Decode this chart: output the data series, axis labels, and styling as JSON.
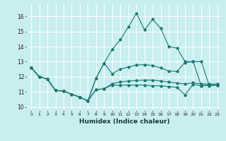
{
  "xlabel": "Humidex (Indice chaleur)",
  "xlim": [
    -0.5,
    23.5
  ],
  "ylim": [
    9.8,
    16.8
  ],
  "yticks": [
    10,
    11,
    12,
    13,
    14,
    15,
    16
  ],
  "xticks": [
    0,
    1,
    2,
    3,
    4,
    5,
    6,
    7,
    8,
    9,
    10,
    11,
    12,
    13,
    14,
    15,
    16,
    17,
    18,
    19,
    20,
    21,
    22,
    23
  ],
  "bg_color": "#c8eef0",
  "grid_color": "#ffffff",
  "line_color": "#1a7a6e",
  "lines": [
    {
      "x": [
        0,
        1,
        2,
        3,
        4,
        5,
        6,
        7,
        8,
        9,
        10,
        11,
        12,
        13,
        14,
        15,
        16,
        17,
        18,
        19,
        20,
        21,
        22,
        23
      ],
      "y": [
        12.6,
        12.0,
        11.85,
        11.1,
        11.05,
        10.85,
        10.65,
        10.4,
        11.15,
        11.2,
        11.45,
        11.45,
        11.45,
        11.45,
        11.45,
        11.4,
        11.4,
        11.35,
        11.3,
        10.8,
        11.5,
        11.4,
        11.45,
        11.45
      ]
    },
    {
      "x": [
        0,
        1,
        2,
        3,
        4,
        5,
        6,
        7,
        8,
        9,
        10,
        11,
        12,
        13,
        14,
        15,
        16,
        17,
        18,
        19,
        20,
        21,
        22,
        23
      ],
      "y": [
        12.6,
        12.0,
        11.85,
        11.1,
        11.05,
        10.85,
        10.65,
        10.4,
        11.15,
        11.2,
        11.55,
        11.65,
        11.72,
        11.75,
        11.78,
        11.78,
        11.72,
        11.65,
        11.58,
        11.52,
        11.6,
        11.52,
        11.52,
        11.52
      ]
    },
    {
      "x": [
        0,
        1,
        2,
        3,
        4,
        5,
        6,
        7,
        8,
        9,
        10,
        11,
        12,
        13,
        14,
        15,
        16,
        17,
        18,
        19,
        20,
        21,
        22,
        23
      ],
      "y": [
        12.6,
        12.0,
        11.85,
        11.1,
        11.05,
        10.85,
        10.65,
        10.4,
        11.9,
        12.9,
        12.2,
        12.5,
        12.65,
        12.78,
        12.8,
        12.75,
        12.58,
        12.38,
        12.35,
        12.95,
        13.0,
        13.0,
        11.4,
        11.45
      ]
    },
    {
      "x": [
        0,
        1,
        2,
        3,
        4,
        5,
        6,
        7,
        8,
        9,
        10,
        11,
        12,
        13,
        14,
        15,
        16,
        17,
        18,
        19,
        20,
        21,
        22,
        23
      ],
      "y": [
        12.6,
        12.0,
        11.85,
        11.1,
        11.05,
        10.85,
        10.65,
        10.4,
        11.9,
        12.9,
        13.8,
        14.45,
        15.3,
        16.2,
        15.1,
        15.8,
        15.2,
        14.0,
        13.9,
        13.0,
        13.0,
        11.4,
        11.45,
        11.45
      ]
    }
  ]
}
